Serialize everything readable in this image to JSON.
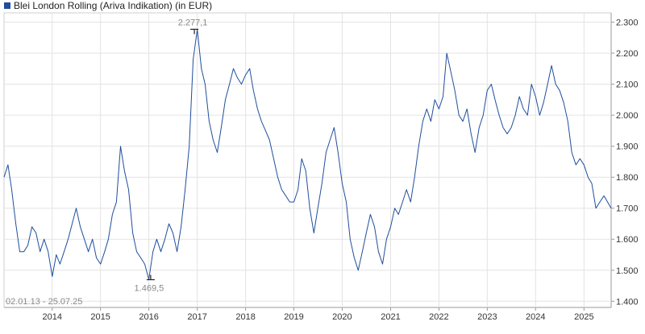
{
  "chart_data": {
    "type": "line",
    "title": "Blei London Rolling (Ariva Indikation) (in EUR)",
    "date_range": "02.01.13 - 25.07.25",
    "ylim": [
      1380,
      2330
    ],
    "y_ticks": [
      {
        "value": 2300,
        "label": "2.300"
      },
      {
        "value": 2200,
        "label": "2.200"
      },
      {
        "value": 2100,
        "label": "2.100"
      },
      {
        "value": 2000,
        "label": "2.000"
      },
      {
        "value": 1900,
        "label": "1.900"
      },
      {
        "value": 1800,
        "label": "1.800"
      },
      {
        "value": 1700,
        "label": "1.700"
      },
      {
        "value": 1600,
        "label": "1.600"
      },
      {
        "value": 1500,
        "label": "1.500"
      },
      {
        "value": 1400,
        "label": "1.400"
      }
    ],
    "x_start": "2013-01-02",
    "x_end": "2025-07-25",
    "x_ticks": [
      {
        "date": "2014-01-01",
        "label": "2014"
      },
      {
        "date": "2015-01-01",
        "label": "2015"
      },
      {
        "date": "2016-01-01",
        "label": "2016"
      },
      {
        "date": "2017-01-01",
        "label": "2017"
      },
      {
        "date": "2018-01-01",
        "label": "2018"
      },
      {
        "date": "2019-01-01",
        "label": "2019"
      },
      {
        "date": "2020-01-01",
        "label": "2020"
      },
      {
        "date": "2021-01-01",
        "label": "2021"
      },
      {
        "date": "2022-01-01",
        "label": "2022"
      },
      {
        "date": "2023-01-01",
        "label": "2023"
      },
      {
        "date": "2024-01-01",
        "label": "2024"
      },
      {
        "date": "2025-01-01",
        "label": "2025"
      }
    ],
    "grid": true,
    "legend_position": "top-left",
    "series": [
      {
        "name": "Blei London Rolling (Ariva Indikation) (in EUR)",
        "color": "#1f4e9c",
        "points": [
          [
            "2013-01-02",
            1800
          ],
          [
            "2013-02-01",
            1840
          ],
          [
            "2013-03-01",
            1760
          ],
          [
            "2013-04-01",
            1650
          ],
          [
            "2013-05-01",
            1560
          ],
          [
            "2013-06-01",
            1560
          ],
          [
            "2013-07-01",
            1580
          ],
          [
            "2013-08-01",
            1640
          ],
          [
            "2013-09-01",
            1620
          ],
          [
            "2013-10-01",
            1560
          ],
          [
            "2013-11-01",
            1600
          ],
          [
            "2013-12-01",
            1560
          ],
          [
            "2014-01-01",
            1480
          ],
          [
            "2014-02-01",
            1550
          ],
          [
            "2014-03-01",
            1520
          ],
          [
            "2014-04-01",
            1560
          ],
          [
            "2014-05-01",
            1600
          ],
          [
            "2014-06-01",
            1650
          ],
          [
            "2014-07-01",
            1700
          ],
          [
            "2014-08-01",
            1640
          ],
          [
            "2014-09-01",
            1600
          ],
          [
            "2014-10-01",
            1560
          ],
          [
            "2014-11-01",
            1600
          ],
          [
            "2014-12-01",
            1540
          ],
          [
            "2015-01-01",
            1520
          ],
          [
            "2015-02-01",
            1560
          ],
          [
            "2015-03-01",
            1600
          ],
          [
            "2015-04-01",
            1680
          ],
          [
            "2015-05-01",
            1720
          ],
          [
            "2015-06-01",
            1900
          ],
          [
            "2015-07-01",
            1820
          ],
          [
            "2015-08-01",
            1760
          ],
          [
            "2015-09-01",
            1620
          ],
          [
            "2015-10-01",
            1560
          ],
          [
            "2015-11-01",
            1540
          ],
          [
            "2015-12-01",
            1520
          ],
          [
            "2016-01-01",
            1470
          ],
          [
            "2016-02-01",
            1560
          ],
          [
            "2016-03-01",
            1600
          ],
          [
            "2016-04-01",
            1560
          ],
          [
            "2016-05-01",
            1600
          ],
          [
            "2016-06-01",
            1650
          ],
          [
            "2016-07-01",
            1620
          ],
          [
            "2016-08-01",
            1560
          ],
          [
            "2016-09-01",
            1640
          ],
          [
            "2016-10-01",
            1760
          ],
          [
            "2016-11-01",
            1900
          ],
          [
            "2016-12-01",
            2180
          ],
          [
            "2017-01-01",
            2277
          ],
          [
            "2017-02-01",
            2150
          ],
          [
            "2017-03-01",
            2100
          ],
          [
            "2017-04-01",
            1980
          ],
          [
            "2017-05-01",
            1920
          ],
          [
            "2017-06-01",
            1880
          ],
          [
            "2017-07-01",
            1960
          ],
          [
            "2017-08-01",
            2050
          ],
          [
            "2017-09-01",
            2100
          ],
          [
            "2017-10-01",
            2150
          ],
          [
            "2017-11-01",
            2120
          ],
          [
            "2017-12-01",
            2100
          ],
          [
            "2018-01-01",
            2130
          ],
          [
            "2018-02-01",
            2150
          ],
          [
            "2018-03-01",
            2080
          ],
          [
            "2018-04-01",
            2020
          ],
          [
            "2018-05-01",
            1980
          ],
          [
            "2018-06-01",
            1950
          ],
          [
            "2018-07-01",
            1920
          ],
          [
            "2018-08-01",
            1860
          ],
          [
            "2018-09-01",
            1800
          ],
          [
            "2018-10-01",
            1760
          ],
          [
            "2018-11-01",
            1740
          ],
          [
            "2018-12-01",
            1720
          ],
          [
            "2019-01-01",
            1720
          ],
          [
            "2019-02-01",
            1760
          ],
          [
            "2019-03-01",
            1860
          ],
          [
            "2019-04-01",
            1820
          ],
          [
            "2019-05-01",
            1700
          ],
          [
            "2019-06-01",
            1620
          ],
          [
            "2019-07-01",
            1700
          ],
          [
            "2019-08-01",
            1780
          ],
          [
            "2019-09-01",
            1880
          ],
          [
            "2019-10-01",
            1920
          ],
          [
            "2019-11-01",
            1960
          ],
          [
            "2019-12-01",
            1880
          ],
          [
            "2020-01-01",
            1780
          ],
          [
            "2020-02-01",
            1720
          ],
          [
            "2020-03-01",
            1600
          ],
          [
            "2020-04-01",
            1540
          ],
          [
            "2020-05-01",
            1500
          ],
          [
            "2020-06-01",
            1560
          ],
          [
            "2020-07-01",
            1620
          ],
          [
            "2020-08-01",
            1680
          ],
          [
            "2020-09-01",
            1640
          ],
          [
            "2020-10-01",
            1560
          ],
          [
            "2020-11-01",
            1520
          ],
          [
            "2020-12-01",
            1600
          ],
          [
            "2021-01-01",
            1640
          ],
          [
            "2021-02-01",
            1700
          ],
          [
            "2021-03-01",
            1680
          ],
          [
            "2021-04-01",
            1720
          ],
          [
            "2021-05-01",
            1760
          ],
          [
            "2021-06-01",
            1720
          ],
          [
            "2021-07-01",
            1800
          ],
          [
            "2021-08-01",
            1900
          ],
          [
            "2021-09-01",
            1980
          ],
          [
            "2021-10-01",
            2020
          ],
          [
            "2021-11-01",
            1980
          ],
          [
            "2021-12-01",
            2050
          ],
          [
            "2022-01-01",
            2020
          ],
          [
            "2022-02-01",
            2060
          ],
          [
            "2022-03-01",
            2200
          ],
          [
            "2022-04-01",
            2140
          ],
          [
            "2022-05-01",
            2080
          ],
          [
            "2022-06-01",
            2000
          ],
          [
            "2022-07-01",
            1980
          ],
          [
            "2022-08-01",
            2020
          ],
          [
            "2022-09-01",
            1940
          ],
          [
            "2022-10-01",
            1880
          ],
          [
            "2022-11-01",
            1960
          ],
          [
            "2022-12-01",
            2000
          ],
          [
            "2023-01-01",
            2080
          ],
          [
            "2023-02-01",
            2100
          ],
          [
            "2023-03-01",
            2050
          ],
          [
            "2023-04-01",
            2000
          ],
          [
            "2023-05-01",
            1960
          ],
          [
            "2023-06-01",
            1940
          ],
          [
            "2023-07-01",
            1960
          ],
          [
            "2023-08-01",
            2000
          ],
          [
            "2023-09-01",
            2060
          ],
          [
            "2023-10-01",
            2020
          ],
          [
            "2023-11-01",
            2000
          ],
          [
            "2023-12-01",
            2100
          ],
          [
            "2024-01-01",
            2060
          ],
          [
            "2024-02-01",
            2000
          ],
          [
            "2024-03-01",
            2040
          ],
          [
            "2024-04-01",
            2100
          ],
          [
            "2024-05-01",
            2160
          ],
          [
            "2024-06-01",
            2100
          ],
          [
            "2024-07-01",
            2080
          ],
          [
            "2024-08-01",
            2040
          ],
          [
            "2024-09-01",
            1980
          ],
          [
            "2024-10-01",
            1880
          ],
          [
            "2024-11-01",
            1840
          ],
          [
            "2024-12-01",
            1860
          ],
          [
            "2025-01-01",
            1840
          ],
          [
            "2025-02-01",
            1800
          ],
          [
            "2025-03-01",
            1780
          ],
          [
            "2025-04-01",
            1700
          ],
          [
            "2025-05-01",
            1720
          ],
          [
            "2025-06-01",
            1740
          ],
          [
            "2025-07-25",
            1700
          ]
        ]
      }
    ],
    "annotations": [
      {
        "type": "max",
        "label": "2.277,1",
        "date": "2016-12-10",
        "value": 2277.1
      },
      {
        "type": "min",
        "label": "1.469,5",
        "date": "2016-01-15",
        "value": 1469.5
      }
    ]
  }
}
